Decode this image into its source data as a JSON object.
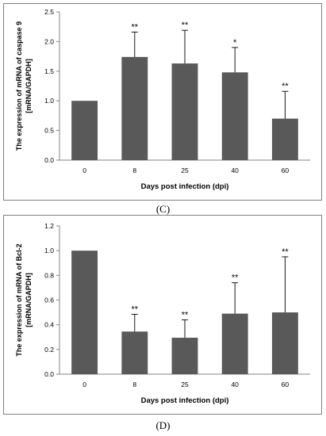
{
  "panels": [
    {
      "label": "(C)"
    },
    {
      "label": "(D)"
    }
  ],
  "chart_data": [
    {
      "type": "bar",
      "panel": "(C)",
      "categories": [
        "0",
        "8",
        "25",
        "40",
        "60"
      ],
      "values": [
        1.0,
        1.74,
        1.63,
        1.48,
        0.7
      ],
      "error": [
        0.0,
        0.42,
        0.56,
        0.42,
        0.46
      ],
      "significance": [
        "",
        "**",
        "**",
        "*",
        "**"
      ],
      "xlabel": "Days post infection (dpi)",
      "ylabel": [
        "The expression of mRNA of caspase 9",
        "[mRNA/GAPDH]"
      ],
      "ylim": [
        0,
        2.5
      ],
      "yticks": [
        "0.0",
        "0.5",
        "1.0",
        "1.5",
        "2.0",
        "2.5"
      ],
      "bar_color": "#595959",
      "grid": false
    },
    {
      "type": "bar",
      "panel": "(D)",
      "categories": [
        "0",
        "8",
        "25",
        "40",
        "60"
      ],
      "values": [
        1.0,
        0.345,
        0.295,
        0.49,
        0.5
      ],
      "error": [
        0.0,
        0.14,
        0.145,
        0.25,
        0.45
      ],
      "significance": [
        "",
        "**",
        "**",
        "**",
        "**"
      ],
      "xlabel": "Days post infection (dpi)",
      "ylabel": [
        "The expression of mRNA of Bcl-2",
        "[mRNA/GAPDH]"
      ],
      "ylim": [
        0,
        1.2
      ],
      "yticks": [
        "0.0",
        "0.2",
        "0.4",
        "0.6",
        "0.8",
        "1.0",
        "1.2"
      ],
      "bar_color": "#595959",
      "grid": false
    }
  ]
}
